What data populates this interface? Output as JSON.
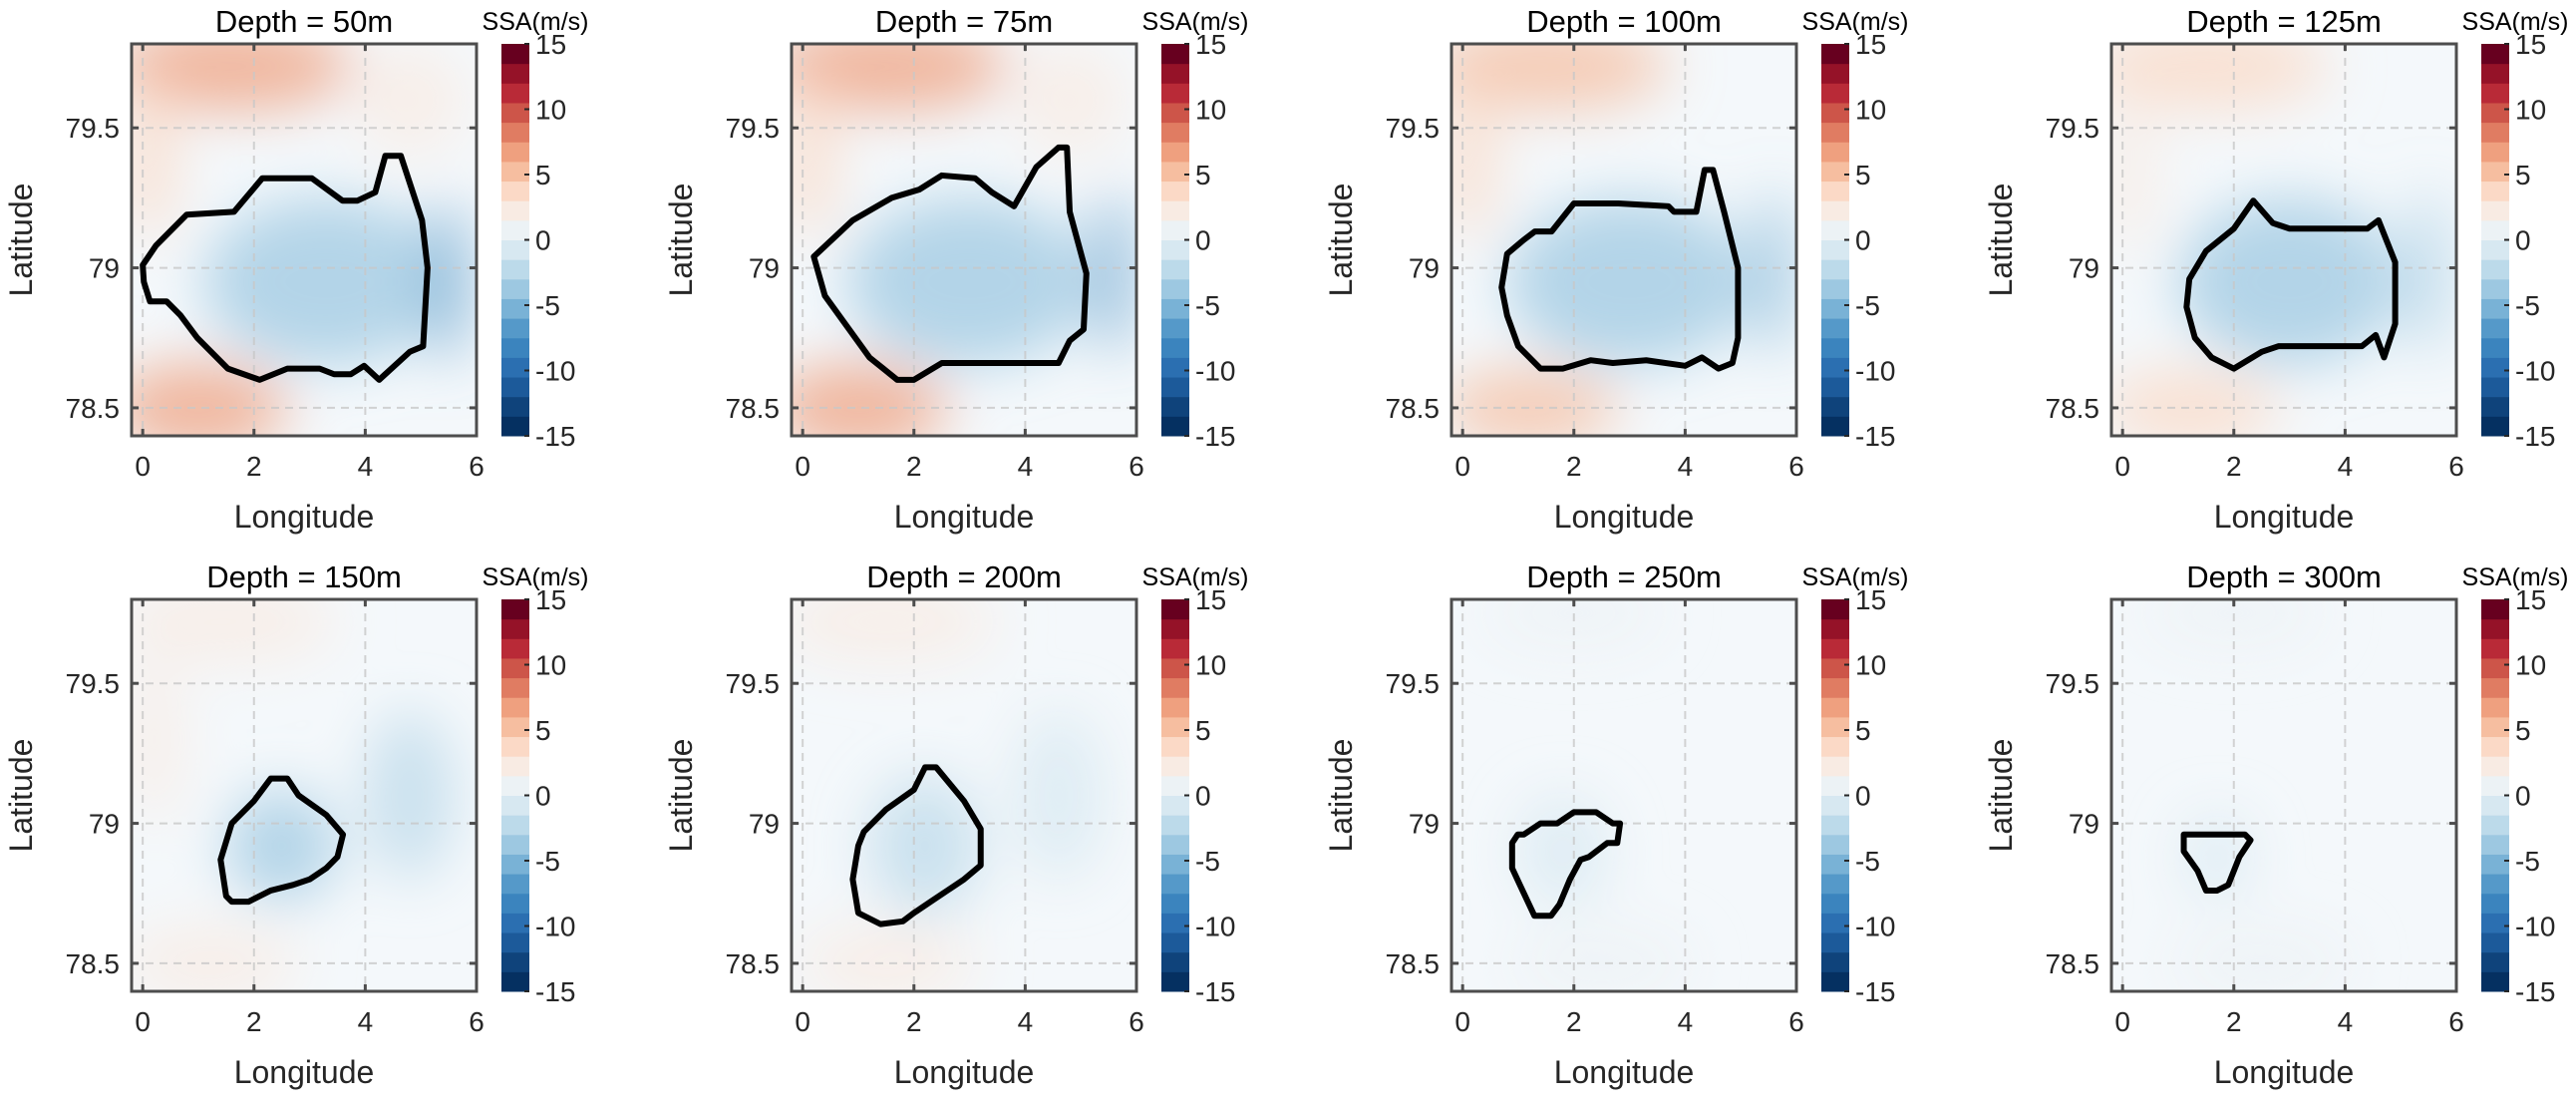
{
  "colormap": [
    "#053061",
    "#0f437b",
    "#1c5a9a",
    "#2b6fb1",
    "#3b84be",
    "#5599c9",
    "#79b2d6",
    "#9dc8e1",
    "#bcdaea",
    "#d7e8f1",
    "#ecf2f5",
    "#f8ebe3",
    "#fbd9c6",
    "#f6bea0",
    "#efa07f",
    "#e07c62",
    "#cd5549",
    "#b92a37",
    "#951228",
    "#67001f"
  ],
  "chart_data": [
    {
      "type": "heatmap",
      "title": "Depth = 50m",
      "xlabel": "Longitude",
      "ylabel": "Latitude",
      "xlim": [
        -0.2,
        6
      ],
      "ylim": [
        78.4,
        79.8
      ],
      "xticks": [
        "0",
        "2",
        "4",
        "6"
      ],
      "yticks": [
        "78.5",
        "79",
        "79.5"
      ],
      "colorbar": {
        "label": "SSA(m/s)",
        "range": [
          -15,
          15
        ],
        "ticks": [
          "15",
          "10",
          "5",
          "0",
          "-5",
          "-10",
          "-15"
        ]
      },
      "contour": [
        [
          0,
          79.01
        ],
        [
          0.24,
          79.08
        ],
        [
          0.79,
          79.19
        ],
        [
          1.64,
          79.2
        ],
        [
          2.15,
          79.32
        ],
        [
          3.04,
          79.32
        ],
        [
          3.59,
          79.24
        ],
        [
          3.86,
          79.24
        ],
        [
          4.18,
          79.27
        ],
        [
          4.36,
          79.4
        ],
        [
          4.64,
          79.4
        ],
        [
          5.02,
          79.17
        ],
        [
          5.12,
          79.0
        ],
        [
          5.04,
          78.72
        ],
        [
          4.8,
          78.7
        ],
        [
          4.25,
          78.6
        ],
        [
          3.98,
          78.65
        ],
        [
          3.74,
          78.62
        ],
        [
          3.44,
          78.62
        ],
        [
          3.18,
          78.64
        ],
        [
          2.6,
          78.64
        ],
        [
          2.1,
          78.6
        ],
        [
          1.53,
          78.64
        ],
        [
          0.98,
          78.75
        ],
        [
          0.68,
          78.83
        ],
        [
          0.43,
          78.88
        ],
        [
          0.13,
          78.88
        ],
        [
          0.02,
          78.95
        ]
      ],
      "field": [
        [
          1.6,
          79.72,
          2.2,
          0.16,
          4
        ],
        [
          0.1,
          79.4,
          0.5,
          0.3,
          2.5
        ],
        [
          1.0,
          78.5,
          1.6,
          0.16,
          4
        ],
        [
          3.3,
          78.95,
          2.2,
          0.3,
          -2
        ],
        [
          5.5,
          78.95,
          0.3,
          0.3,
          -4
        ],
        [
          4.8,
          79.6,
          1.0,
          0.2,
          1
        ]
      ]
    },
    {
      "type": "heatmap",
      "title": "Depth = 75m",
      "xlabel": "Longitude",
      "ylabel": "Latitude",
      "xlim": [
        -0.2,
        6
      ],
      "ylim": [
        78.4,
        79.8
      ],
      "xticks": [
        "0",
        "2",
        "4",
        "6"
      ],
      "yticks": [
        "78.5",
        "79",
        "79.5"
      ],
      "colorbar": {
        "label": "SSA(m/s)",
        "range": [
          -15,
          15
        ],
        "ticks": [
          "15",
          "10",
          "5",
          "0",
          "-5",
          "-10",
          "-15"
        ]
      },
      "contour": [
        [
          0.2,
          79.04
        ],
        [
          0.9,
          79.17
        ],
        [
          1.6,
          79.25
        ],
        [
          2.1,
          79.28
        ],
        [
          2.5,
          79.33
        ],
        [
          3.1,
          79.32
        ],
        [
          3.4,
          79.27
        ],
        [
          3.8,
          79.22
        ],
        [
          4.2,
          79.36
        ],
        [
          4.6,
          79.43
        ],
        [
          4.75,
          79.43
        ],
        [
          4.8,
          79.2
        ],
        [
          5.1,
          78.98
        ],
        [
          5.05,
          78.78
        ],
        [
          4.8,
          78.74
        ],
        [
          4.6,
          78.66
        ],
        [
          3.3,
          78.66
        ],
        [
          2.5,
          78.66
        ],
        [
          2.0,
          78.6
        ],
        [
          1.7,
          78.6
        ],
        [
          1.2,
          78.68
        ],
        [
          0.4,
          78.9
        ]
      ],
      "field": [
        [
          1.5,
          79.72,
          2.2,
          0.16,
          4
        ],
        [
          0.1,
          79.4,
          0.5,
          0.3,
          2.5
        ],
        [
          1.0,
          78.5,
          1.6,
          0.16,
          4.5
        ],
        [
          3.0,
          78.95,
          2.2,
          0.3,
          -2.5
        ],
        [
          5.6,
          78.98,
          0.3,
          0.3,
          -4
        ],
        [
          4.8,
          79.6,
          1.0,
          0.2,
          1
        ]
      ]
    },
    {
      "type": "heatmap",
      "title": "Depth = 100m",
      "xlabel": "Longitude",
      "ylabel": "Latitude",
      "xlim": [
        -0.2,
        6
      ],
      "ylim": [
        78.4,
        79.8
      ],
      "xticks": [
        "0",
        "2",
        "4",
        "6"
      ],
      "yticks": [
        "78.5",
        "79",
        "79.5"
      ],
      "colorbar": {
        "label": "SSA(m/s)",
        "range": [
          -15,
          15
        ],
        "ticks": [
          "15",
          "10",
          "5",
          "0",
          "-5",
          "-10",
          "-15"
        ]
      },
      "contour": [
        [
          0.7,
          78.93
        ],
        [
          0.8,
          79.05
        ],
        [
          1.1,
          79.1
        ],
        [
          1.3,
          79.13
        ],
        [
          1.6,
          79.13
        ],
        [
          2.0,
          79.23
        ],
        [
          2.8,
          79.23
        ],
        [
          3.7,
          79.22
        ],
        [
          3.8,
          79.2
        ],
        [
          4.2,
          79.2
        ],
        [
          4.35,
          79.35
        ],
        [
          4.5,
          79.35
        ],
        [
          4.7,
          79.2
        ],
        [
          4.95,
          79.0
        ],
        [
          4.95,
          78.75
        ],
        [
          4.85,
          78.66
        ],
        [
          4.6,
          78.64
        ],
        [
          4.3,
          78.68
        ],
        [
          4.0,
          78.65
        ],
        [
          3.3,
          78.67
        ],
        [
          2.7,
          78.66
        ],
        [
          2.3,
          78.67
        ],
        [
          1.8,
          78.64
        ],
        [
          1.4,
          78.64
        ],
        [
          1.0,
          78.72
        ],
        [
          0.8,
          78.83
        ]
      ],
      "field": [
        [
          1.5,
          79.72,
          2.2,
          0.16,
          3
        ],
        [
          0.1,
          79.4,
          0.5,
          0.3,
          2
        ],
        [
          1.2,
          78.5,
          1.6,
          0.14,
          3
        ],
        [
          3.0,
          78.95,
          2.2,
          0.3,
          -2.5
        ],
        [
          5.6,
          78.98,
          0.3,
          0.3,
          -3.5
        ]
      ]
    },
    {
      "type": "heatmap",
      "title": "Depth = 125m",
      "xlabel": "Longitude",
      "ylabel": "Latitude",
      "xlim": [
        -0.2,
        6
      ],
      "ylim": [
        78.4,
        79.8
      ],
      "xticks": [
        "0",
        "2",
        "4",
        "6"
      ],
      "yticks": [
        "78.5",
        "79",
        "79.5"
      ],
      "colorbar": {
        "label": "SSA(m/s)",
        "range": [
          -15,
          15
        ],
        "ticks": [
          "15",
          "10",
          "5",
          "0",
          "-5",
          "-10",
          "-15"
        ]
      },
      "contour": [
        [
          1.2,
          78.96
        ],
        [
          1.5,
          79.06
        ],
        [
          2.0,
          79.14
        ],
        [
          2.35,
          79.24
        ],
        [
          2.7,
          79.16
        ],
        [
          3.0,
          79.14
        ],
        [
          3.5,
          79.14
        ],
        [
          4.0,
          79.14
        ],
        [
          4.4,
          79.14
        ],
        [
          4.6,
          79.17
        ],
        [
          4.9,
          79.02
        ],
        [
          4.9,
          78.8
        ],
        [
          4.7,
          78.68
        ],
        [
          4.55,
          78.76
        ],
        [
          4.3,
          78.72
        ],
        [
          3.5,
          78.72
        ],
        [
          2.8,
          78.72
        ],
        [
          2.5,
          78.7
        ],
        [
          2.0,
          78.64
        ],
        [
          1.6,
          78.68
        ],
        [
          1.3,
          78.75
        ],
        [
          1.15,
          78.86
        ]
      ],
      "field": [
        [
          1.5,
          79.72,
          2.2,
          0.16,
          2.5
        ],
        [
          0.1,
          79.35,
          0.5,
          0.3,
          1.5
        ],
        [
          1.2,
          78.5,
          1.6,
          0.14,
          2
        ],
        [
          3.0,
          78.95,
          2.0,
          0.3,
          -2.5
        ],
        [
          5.5,
          78.98,
          0.3,
          0.3,
          -2.5
        ]
      ]
    },
    {
      "type": "heatmap",
      "title": "Depth = 150m",
      "xlabel": "Longitude",
      "ylabel": "Latitude",
      "xlim": [
        -0.2,
        6
      ],
      "ylim": [
        78.4,
        79.8
      ],
      "xticks": [
        "0",
        "2",
        "4",
        "6"
      ],
      "yticks": [
        "78.5",
        "79",
        "79.5"
      ],
      "colorbar": {
        "label": "SSA(m/s)",
        "range": [
          -15,
          15
        ],
        "ticks": [
          "15",
          "10",
          "5",
          "0",
          "-5",
          "-10",
          "-15"
        ]
      },
      "contour": [
        [
          1.5,
          78.74
        ],
        [
          1.4,
          78.87
        ],
        [
          1.6,
          79.0
        ],
        [
          2.0,
          79.08
        ],
        [
          2.3,
          79.16
        ],
        [
          2.6,
          79.16
        ],
        [
          2.8,
          79.1
        ],
        [
          3.3,
          79.03
        ],
        [
          3.6,
          78.96
        ],
        [
          3.5,
          78.88
        ],
        [
          3.3,
          78.84
        ],
        [
          3.0,
          78.8
        ],
        [
          2.7,
          78.78
        ],
        [
          2.3,
          78.76
        ],
        [
          1.9,
          78.72
        ],
        [
          1.6,
          78.72
        ]
      ],
      "field": [
        [
          1.5,
          79.72,
          2.0,
          0.15,
          1.5
        ],
        [
          0.2,
          79.3,
          0.5,
          0.3,
          1
        ],
        [
          1.2,
          78.5,
          1.6,
          0.14,
          1.5
        ],
        [
          2.5,
          78.92,
          1.0,
          0.2,
          -2
        ],
        [
          4.8,
          79.1,
          0.8,
          0.3,
          -1.2
        ]
      ]
    },
    {
      "type": "heatmap",
      "title": "Depth = 200m",
      "xlabel": "Longitude",
      "ylabel": "Latitude",
      "xlim": [
        -0.2,
        6
      ],
      "ylim": [
        78.4,
        79.8
      ],
      "xticks": [
        "0",
        "2",
        "4",
        "6"
      ],
      "yticks": [
        "78.5",
        "79",
        "79.5"
      ],
      "colorbar": {
        "label": "SSA(m/s)",
        "range": [
          -15,
          15
        ],
        "ticks": [
          "15",
          "10",
          "5",
          "0",
          "-5",
          "-10",
          "-15"
        ]
      },
      "contour": [
        [
          1.0,
          78.92
        ],
        [
          1.1,
          78.97
        ],
        [
          1.5,
          79.05
        ],
        [
          2.0,
          79.12
        ],
        [
          2.2,
          79.2
        ],
        [
          2.4,
          79.2
        ],
        [
          2.9,
          79.08
        ],
        [
          3.2,
          78.98
        ],
        [
          3.2,
          78.85
        ],
        [
          2.9,
          78.8
        ],
        [
          2.6,
          78.76
        ],
        [
          2.3,
          78.72
        ],
        [
          2.0,
          78.68
        ],
        [
          1.8,
          78.65
        ],
        [
          1.4,
          78.64
        ],
        [
          1.0,
          78.68
        ],
        [
          0.9,
          78.8
        ]
      ],
      "field": [
        [
          1.5,
          79.72,
          2.0,
          0.15,
          1
        ],
        [
          1.5,
          78.5,
          1.6,
          0.14,
          1
        ],
        [
          2.2,
          78.92,
          1.0,
          0.25,
          -1.2
        ],
        [
          4.6,
          79.1,
          0.8,
          0.3,
          -0.8
        ]
      ]
    },
    {
      "type": "heatmap",
      "title": "Depth = 250m",
      "xlabel": "Longitude",
      "ylabel": "Latitude",
      "xlim": [
        -0.2,
        6
      ],
      "ylim": [
        78.4,
        79.8
      ],
      "xticks": [
        "0",
        "2",
        "4",
        "6"
      ],
      "yticks": [
        "78.5",
        "79",
        "79.5"
      ],
      "colorbar": {
        "label": "SSA(m/s)",
        "range": [
          -15,
          15
        ],
        "ticks": [
          "15",
          "10",
          "5",
          "0",
          "-5",
          "-10",
          "-15"
        ]
      },
      "contour": [
        [
          0.99,
          78.96
        ],
        [
          1.1,
          78.96
        ],
        [
          1.4,
          79.0
        ],
        [
          1.7,
          79.0
        ],
        [
          2.0,
          79.04
        ],
        [
          2.4,
          79.04
        ],
        [
          2.7,
          79.0
        ],
        [
          2.83,
          79.0
        ],
        [
          2.78,
          78.93
        ],
        [
          2.6,
          78.93
        ],
        [
          2.27,
          78.88
        ],
        [
          2.12,
          78.87
        ],
        [
          1.93,
          78.8
        ],
        [
          1.74,
          78.71
        ],
        [
          1.59,
          78.67
        ],
        [
          1.29,
          78.67
        ],
        [
          1.03,
          78.78
        ],
        [
          0.89,
          78.84
        ],
        [
          0.89,
          78.93
        ]
      ],
      "field": [
        [
          2.0,
          79.75,
          1.6,
          0.12,
          0.6
        ],
        [
          2.5,
          78.5,
          1.6,
          0.12,
          0.6
        ],
        [
          1.8,
          78.9,
          0.8,
          0.2,
          -0.6
        ]
      ]
    },
    {
      "type": "heatmap",
      "title": "Depth = 300m",
      "xlabel": "Longitude",
      "ylabel": "Latitude",
      "xlim": [
        -0.2,
        6
      ],
      "ylim": [
        78.4,
        79.8
      ],
      "xticks": [
        "0",
        "2",
        "4",
        "6"
      ],
      "yticks": [
        "78.5",
        "79",
        "79.5"
      ],
      "colorbar": {
        "label": "SSA(m/s)",
        "range": [
          -15,
          15
        ],
        "ticks": [
          "15",
          "10",
          "5",
          "0",
          "-5",
          "-10",
          "-15"
        ]
      },
      "contour": [
        [
          1.1,
          78.96
        ],
        [
          2.2,
          78.96
        ],
        [
          2.3,
          78.94
        ],
        [
          2.1,
          78.88
        ],
        [
          1.9,
          78.78
        ],
        [
          1.7,
          78.76
        ],
        [
          1.5,
          78.76
        ],
        [
          1.35,
          78.83
        ],
        [
          1.1,
          78.9
        ]
      ],
      "field": [
        [
          2.0,
          79.75,
          1.6,
          0.12,
          0.4
        ],
        [
          2.5,
          78.5,
          1.6,
          0.12,
          0.4
        ],
        [
          1.7,
          78.88,
          0.6,
          0.15,
          -0.4
        ]
      ]
    }
  ]
}
